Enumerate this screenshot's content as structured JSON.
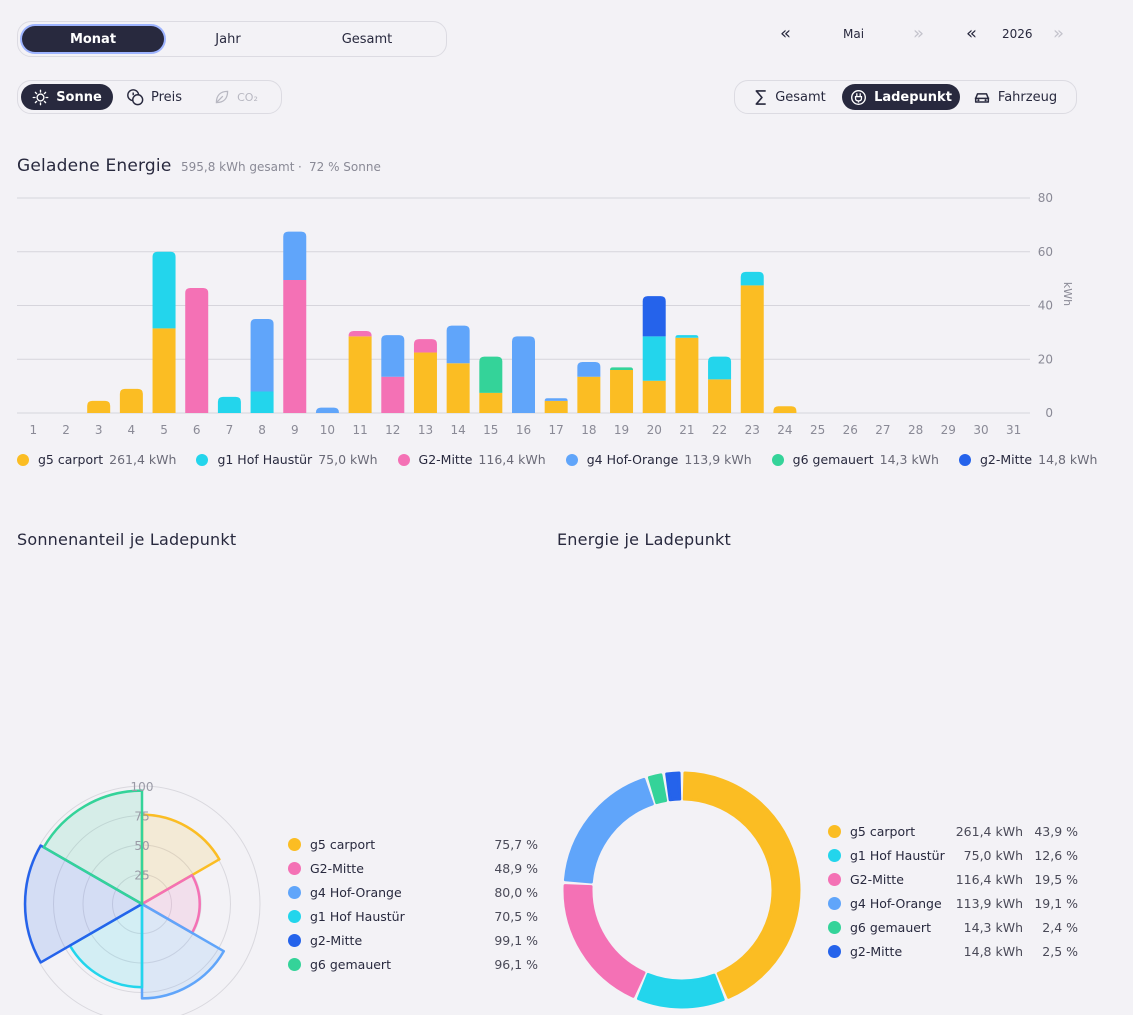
{
  "period_tabs": [
    "Monat",
    "Jahr",
    "Gesamt"
  ],
  "period_active": 0,
  "metric_tabs": [
    {
      "label": "Sonne",
      "icon": "sun-icon"
    },
    {
      "label": "Preis",
      "icon": "price-icon"
    },
    {
      "label": "CO₂",
      "icon": "leaf-icon"
    }
  ],
  "metric_active": 0,
  "group_tabs": [
    {
      "label": "Gesamt",
      "icon": "sigma-icon"
    },
    {
      "label": "Ladepunkt",
      "icon": "charger-icon"
    },
    {
      "label": "Fahrzeug",
      "icon": "car-icon"
    }
  ],
  "group_active": 1,
  "month_nav": {
    "prev": "«",
    "label": "Mai",
    "next": "»"
  },
  "year_nav": {
    "prev": "«",
    "label": "2026",
    "next": "»"
  },
  "energy_section": {
    "title": "Geladene Energie",
    "total": "595,8 kWh gesamt",
    "separator": "·",
    "sun_share": "72 % Sonne"
  },
  "colors": {
    "g5": "#fbbd23",
    "g1": "#23d5ec",
    "G2": "#f471b5",
    "g4": "#60a5fa",
    "g6": "#34d399",
    "g2": "#2563eb"
  },
  "chart_data": {
    "type": "bar",
    "stacked": true,
    "ylabel": "kWh",
    "ylim": [
      0,
      80
    ],
    "yticks": [
      0,
      20,
      40,
      60,
      80
    ],
    "grid": true,
    "legend_position": "bottom",
    "categories": [
      "1",
      "2",
      "3",
      "4",
      "5",
      "6",
      "7",
      "8",
      "9",
      "10",
      "11",
      "12",
      "13",
      "14",
      "15",
      "16",
      "17",
      "18",
      "19",
      "20",
      "21",
      "22",
      "23",
      "24",
      "25",
      "26",
      "27",
      "28",
      "29",
      "30",
      "31"
    ],
    "series": [
      {
        "name": "g5 carport",
        "key": "g5",
        "total": "261,4 kWh",
        "values": [
          0,
          0,
          4.5,
          9,
          31.5,
          0,
          0,
          0,
          0,
          0,
          28.5,
          0,
          22.5,
          18.5,
          7.5,
          0,
          4.5,
          13.5,
          16,
          12,
          28,
          12.5,
          47.5,
          2.5,
          0,
          0,
          0,
          0,
          0,
          0,
          0
        ]
      },
      {
        "name": "g1 Hof Haustür",
        "key": "g1",
        "total": "75,0 kWh",
        "values": [
          0,
          0,
          0,
          0,
          28.5,
          0,
          6,
          8,
          0,
          0,
          0,
          0,
          0,
          0,
          0,
          0,
          0,
          0,
          0,
          16.5,
          1,
          8.5,
          5,
          0,
          0,
          0,
          0,
          0,
          0,
          0,
          0
        ]
      },
      {
        "name": "G2-Mitte",
        "key": "G2",
        "total": "116,4 kWh",
        "values": [
          0,
          0,
          0,
          0,
          0,
          46.5,
          0,
          0,
          49.5,
          0,
          2,
          13.5,
          5,
          0,
          0,
          0,
          0,
          0,
          0,
          0,
          0,
          0,
          0,
          0,
          0,
          0,
          0,
          0,
          0,
          0,
          0
        ]
      },
      {
        "name": "g4 Hof-Orange",
        "key": "g4",
        "total": "113,9 kWh",
        "values": [
          0,
          0,
          0,
          0,
          0,
          0,
          0,
          27,
          18,
          2,
          0,
          15.5,
          0,
          14,
          0,
          28.5,
          1,
          5.5,
          0,
          0,
          0,
          0,
          0,
          0,
          0,
          0,
          0,
          0,
          0,
          0,
          0
        ]
      },
      {
        "name": "g6 gemauert",
        "key": "g6",
        "total": "14,3 kWh",
        "values": [
          0,
          0,
          0,
          0,
          0,
          0,
          0,
          0,
          0,
          0,
          0,
          0,
          0,
          0,
          13.5,
          0,
          0,
          0,
          1,
          0,
          0,
          0,
          0,
          0,
          0,
          0,
          0,
          0,
          0,
          0,
          0
        ]
      },
      {
        "name": "g2-Mitte",
        "key": "g2",
        "total": "14,8 kWh",
        "values": [
          0,
          0,
          0,
          0,
          0,
          0,
          0,
          0,
          0,
          0,
          0,
          0,
          0,
          0,
          0,
          0,
          0,
          0,
          0,
          15,
          0,
          0,
          0,
          0,
          0,
          0,
          0,
          0,
          0,
          0,
          0
        ]
      }
    ]
  },
  "sun_section": {
    "title": "Sonnenanteil je Ladepunkt"
  },
  "sun_chart": {
    "type": "polar",
    "rlim": [
      0,
      100
    ],
    "rticks": [
      25,
      50,
      75,
      100
    ],
    "items": [
      {
        "name": "g5 carport",
        "key": "g5",
        "value": 75.7,
        "label": "75,7 %"
      },
      {
        "name": "G2-Mitte",
        "key": "G2",
        "value": 48.9,
        "label": "48,9 %"
      },
      {
        "name": "g4 Hof-Orange",
        "key": "g4",
        "value": 80.0,
        "label": "80,0 %"
      },
      {
        "name": "g1 Hof Haustür",
        "key": "g1",
        "value": 70.5,
        "label": "70,5 %"
      },
      {
        "name": "g2-Mitte",
        "key": "g2",
        "value": 99.1,
        "label": "99,1 %"
      },
      {
        "name": "g6 gemauert",
        "key": "g6",
        "value": 96.1,
        "label": "96,1 %"
      }
    ]
  },
  "energy_per_point_section": {
    "title": "Energie je Ladepunkt"
  },
  "donut_chart": {
    "type": "pie",
    "items": [
      {
        "name": "g5 carport",
        "key": "g5",
        "value": 261.4,
        "kwh": "261,4 kWh",
        "pct": "43,9 %"
      },
      {
        "name": "g1 Hof Haustür",
        "key": "g1",
        "value": 75.0,
        "kwh": "75,0 kWh",
        "pct": "12,6 %"
      },
      {
        "name": "G2-Mitte",
        "key": "G2",
        "value": 116.4,
        "kwh": "116,4 kWh",
        "pct": "19,5 %"
      },
      {
        "name": "g4 Hof-Orange",
        "key": "g4",
        "value": 113.9,
        "kwh": "113,9 kWh",
        "pct": "19,1 %"
      },
      {
        "name": "g6 gemauert",
        "key": "g6",
        "value": 14.3,
        "kwh": "14,3 kWh",
        "pct": "2,4 %"
      },
      {
        "name": "g2-Mitte",
        "key": "g2",
        "value": 14.8,
        "kwh": "14,8 kWh",
        "pct": "2,5 %"
      }
    ]
  }
}
